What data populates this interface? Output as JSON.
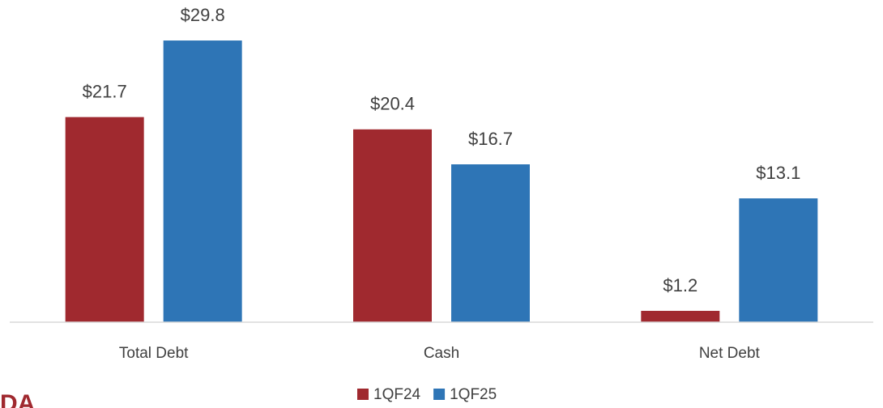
{
  "chart_data": {
    "type": "bar",
    "categories": [
      "Total Debt",
      "Cash",
      "Net Debt"
    ],
    "series": [
      {
        "name": "1QF24",
        "color": "#a0292f",
        "values": [
          21.7,
          20.4,
          1.2
        ],
        "value_labels": [
          "$21.7",
          "$20.4",
          "$1.2"
        ]
      },
      {
        "name": "1QF25",
        "color": "#2e75b6",
        "values": [
          29.8,
          16.7,
          13.1
        ],
        "value_labels": [
          "$29.8",
          "$16.7",
          "$13.1"
        ]
      }
    ],
    "ylim": [
      0,
      34
    ],
    "legend": "bottom"
  },
  "footer_text": "DA"
}
